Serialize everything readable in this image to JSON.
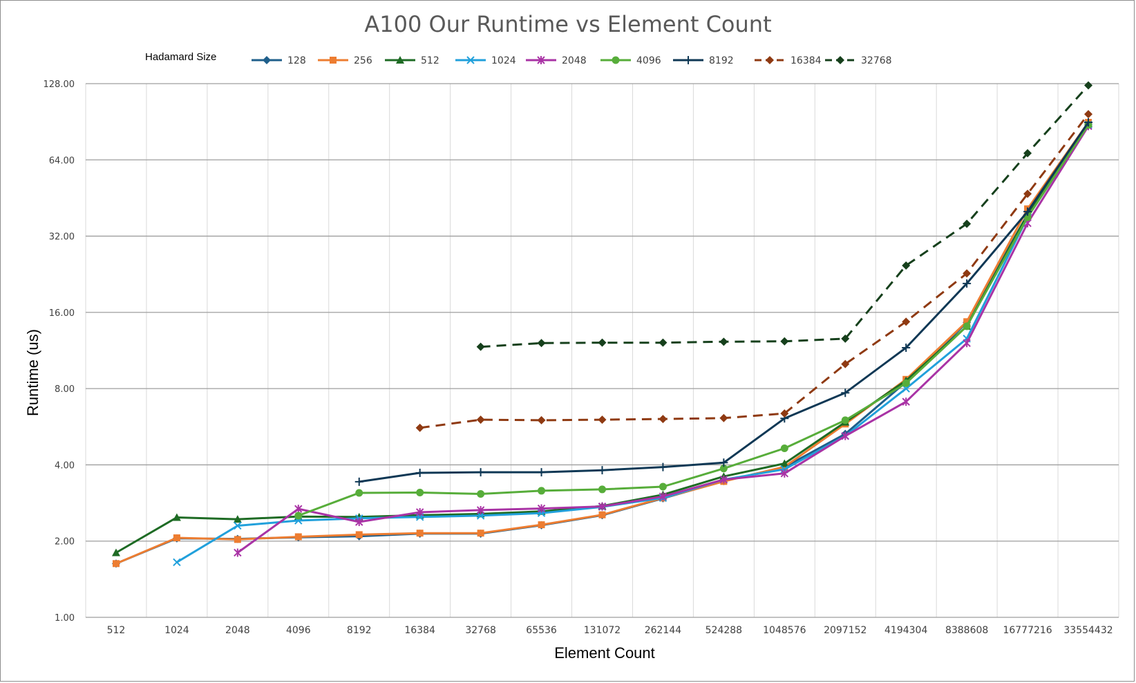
{
  "chart_data": {
    "type": "line",
    "title": "A100 Our Runtime vs Element Count",
    "xlabel": "Element Count",
    "ylabel": "Runtime (us)",
    "y_scale": "log2",
    "ylim": [
      1,
      128
    ],
    "grid": true,
    "legend_title": "Hadamard Size",
    "legend_position": "top",
    "categories": [
      "512",
      "1024",
      "2048",
      "4096",
      "8192",
      "16384",
      "32768",
      "65536",
      "131072",
      "262144",
      "524288",
      "1048576",
      "2097152",
      "4194304",
      "8388608",
      "16777216",
      "33554432"
    ],
    "y_ticks": [
      "1.00",
      "2.00",
      "4.00",
      "8.00",
      "16.00",
      "32.00",
      "64.00",
      "128.00"
    ],
    "series": [
      {
        "name": "128",
        "color": "#1f5f8b",
        "marker": "diamond",
        "dashed": false,
        "values": [
          1.63,
          2.05,
          2.04,
          2.07,
          2.09,
          2.14,
          2.14,
          2.31,
          2.53,
          2.95,
          3.45,
          3.92,
          5.3,
          8.5,
          14.6,
          39,
          88
        ]
      },
      {
        "name": "256",
        "color": "#ed7d31",
        "marker": "square",
        "dashed": false,
        "values": [
          1.63,
          2.06,
          2.03,
          2.08,
          2.12,
          2.15,
          2.15,
          2.32,
          2.54,
          2.96,
          3.44,
          3.93,
          5.8,
          8.7,
          14.7,
          41,
          90
        ]
      },
      {
        "name": "512",
        "color": "#1e6b24",
        "marker": "triangle",
        "dashed": false,
        "values": [
          1.8,
          2.48,
          2.44,
          2.5,
          2.49,
          2.53,
          2.56,
          2.62,
          2.75,
          3.05,
          3.6,
          4.05,
          5.9,
          8.6,
          14.1,
          39,
          89
        ]
      },
      {
        "name": "1024",
        "color": "#21a0db",
        "marker": "x",
        "dashed": false,
        "values": [
          null,
          1.65,
          2.3,
          2.41,
          2.46,
          2.49,
          2.52,
          2.58,
          2.73,
          2.96,
          3.5,
          3.84,
          5.2,
          8.0,
          12.6,
          38,
          88
        ]
      },
      {
        "name": "2048",
        "color": "#a933a5",
        "marker": "star",
        "dashed": false,
        "values": [
          null,
          null,
          1.8,
          2.68,
          2.38,
          2.6,
          2.65,
          2.69,
          2.74,
          3.0,
          3.5,
          3.7,
          5.2,
          7.1,
          12.1,
          36,
          87
        ]
      },
      {
        "name": "4096",
        "color": "#57ad3a",
        "marker": "circle",
        "dashed": false,
        "values": [
          null,
          null,
          null,
          2.52,
          3.1,
          3.11,
          3.07,
          3.16,
          3.2,
          3.28,
          3.87,
          4.65,
          6.0,
          8.4,
          14.1,
          38,
          88
        ]
      },
      {
        "name": "8192",
        "color": "#0f3855",
        "marker": "plus",
        "dashed": false,
        "values": [
          null,
          null,
          null,
          null,
          3.43,
          3.72,
          3.74,
          3.74,
          3.81,
          3.92,
          4.08,
          6.1,
          7.7,
          11.6,
          20.8,
          40,
          90
        ]
      },
      {
        "name": "16384",
        "color": "#8f3a12",
        "marker": "diamond",
        "dashed": true,
        "values": [
          null,
          null,
          null,
          null,
          null,
          5.6,
          6.03,
          6.0,
          6.03,
          6.07,
          6.12,
          6.38,
          10.0,
          14.7,
          22.8,
          47,
          97
        ]
      },
      {
        "name": "32768",
        "color": "#16401c",
        "marker": "diamond",
        "dashed": true,
        "values": [
          null,
          null,
          null,
          null,
          null,
          null,
          11.7,
          12.1,
          12.15,
          12.15,
          12.25,
          12.3,
          12.6,
          24.5,
          35.8,
          68,
          126
        ]
      }
    ]
  }
}
